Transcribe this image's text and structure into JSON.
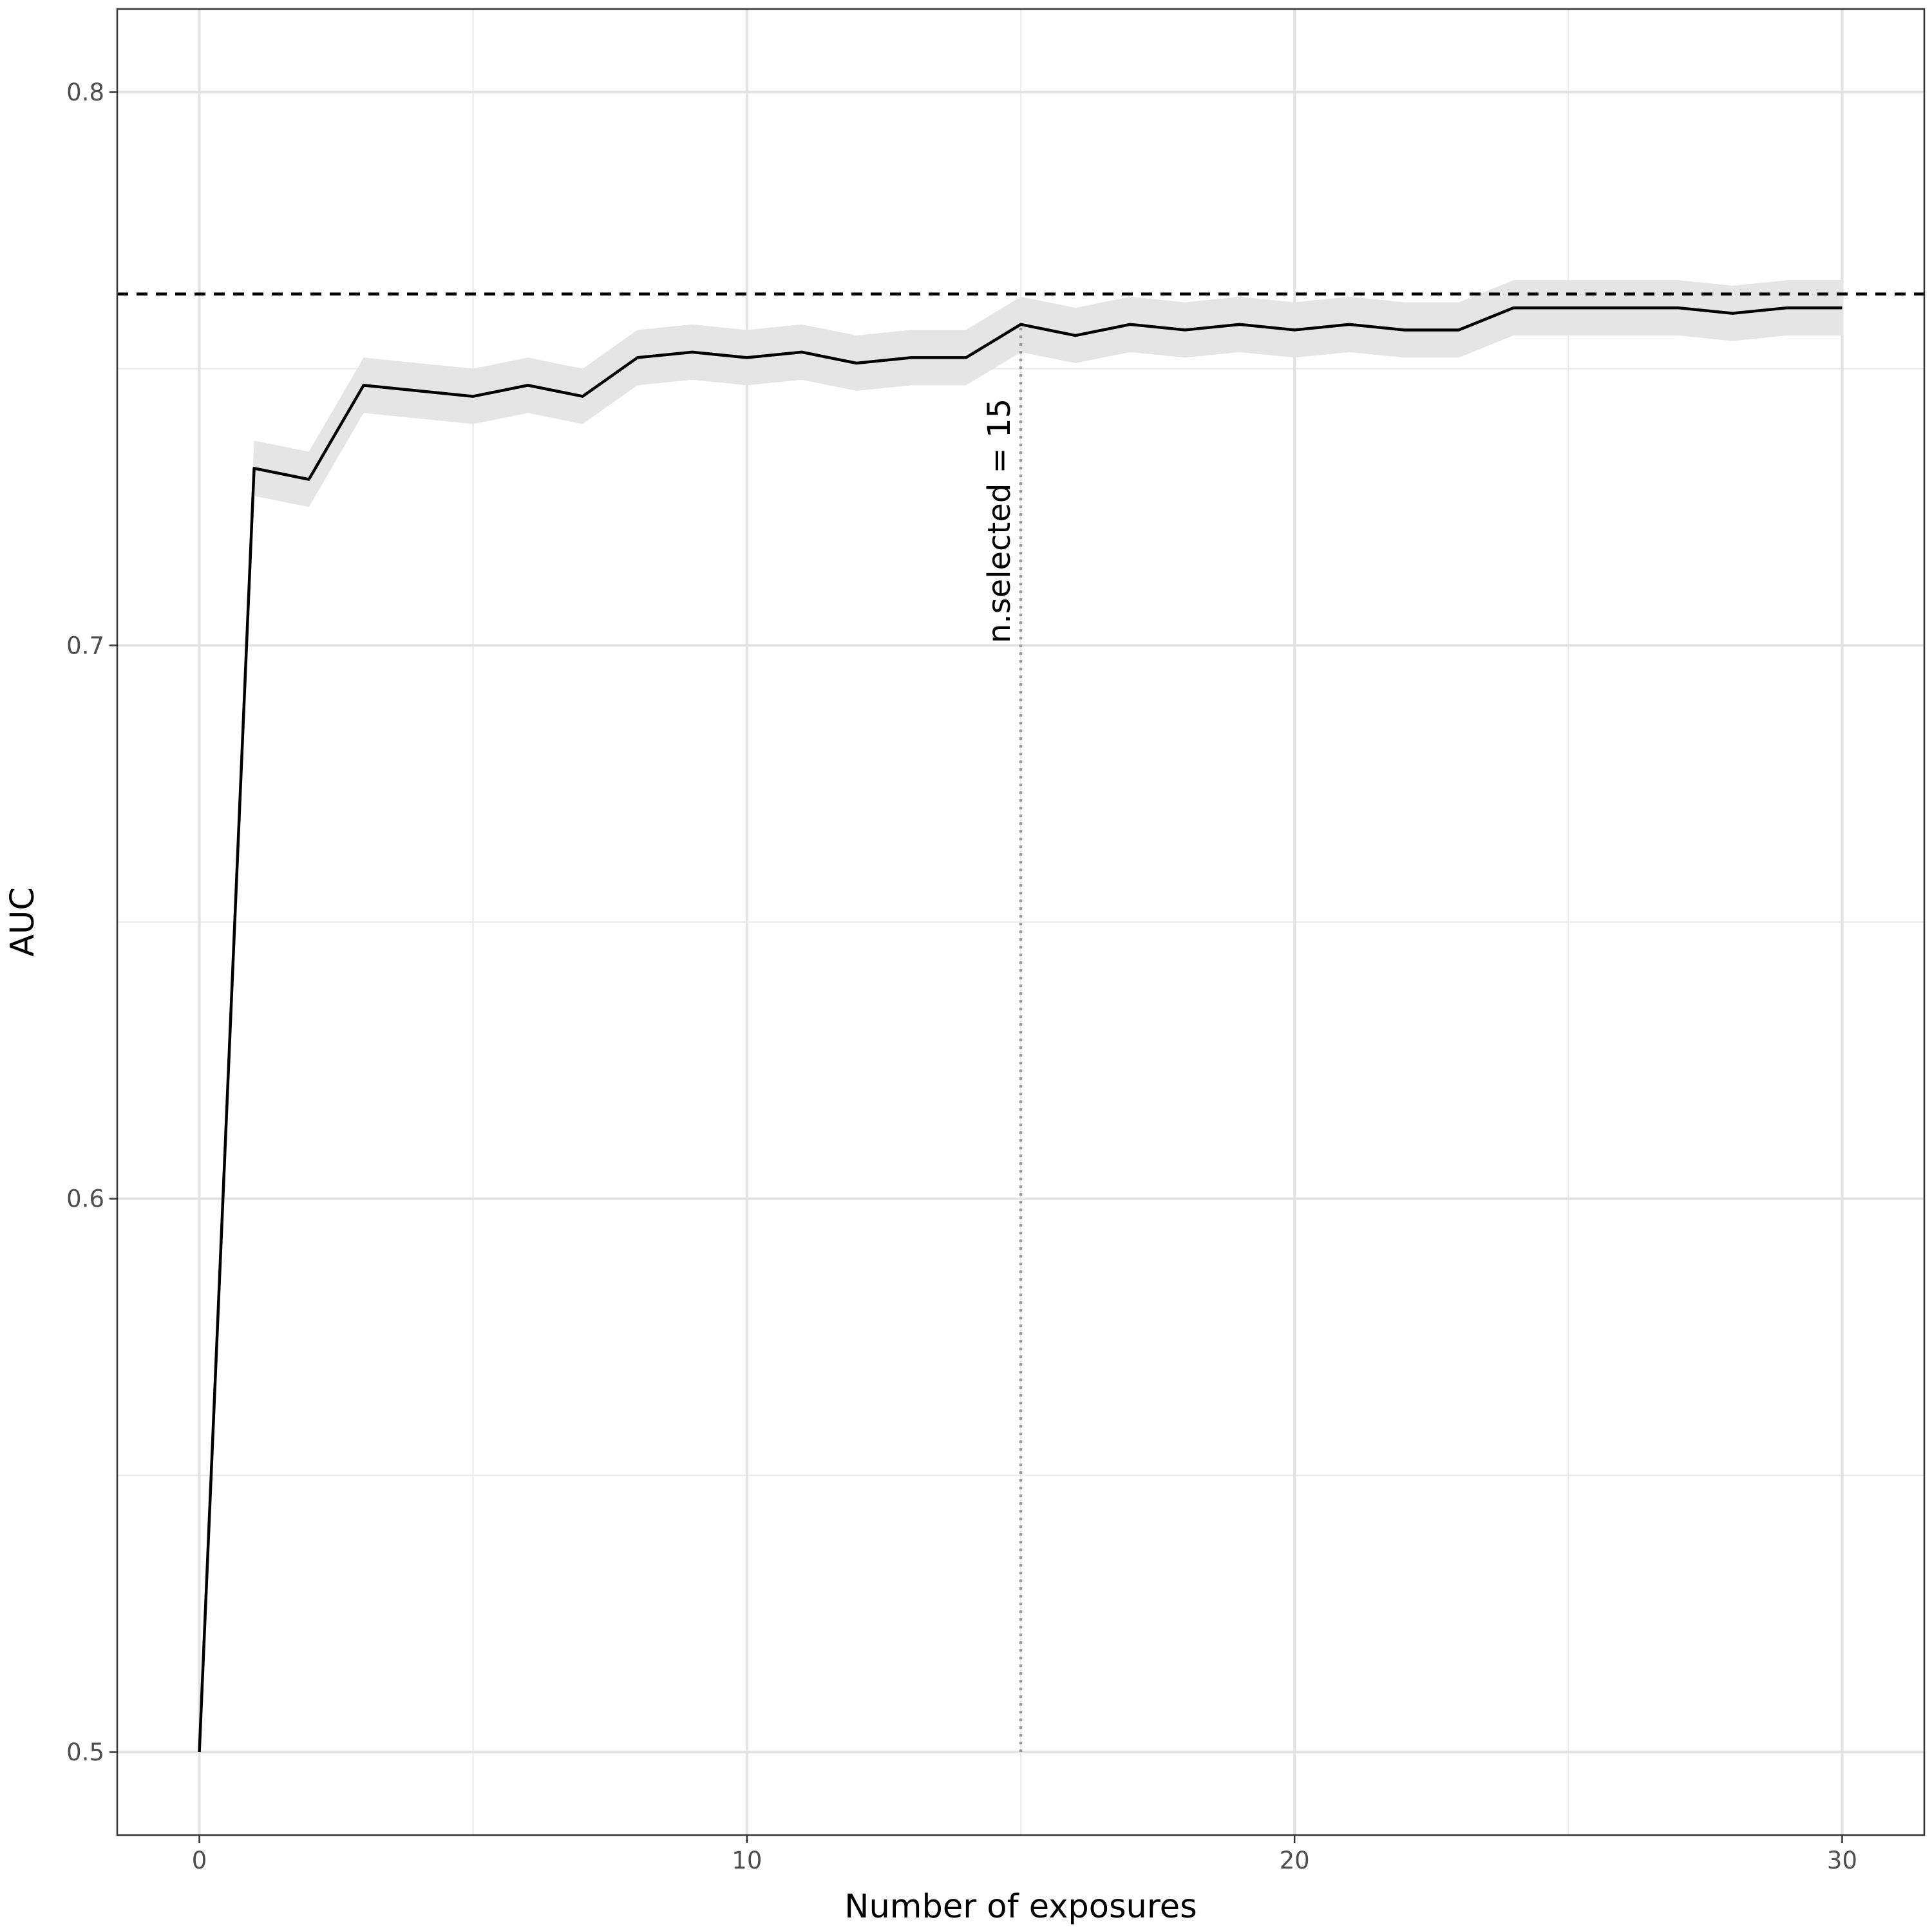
{
  "chart_data": {
    "type": "line",
    "xlabel": "Number of exposures",
    "ylabel": "AUC",
    "xlim": [
      -1.5,
      31.5
    ],
    "ylim": [
      0.485,
      0.815
    ],
    "x_ticks": [
      0,
      10,
      20,
      30
    ],
    "x_tick_labels": [
      "0",
      "10",
      "20",
      "30"
    ],
    "y_ticks": [
      0.5,
      0.6,
      0.7,
      0.8
    ],
    "y_tick_labels": [
      "0.5",
      "0.6",
      "0.7",
      "0.8"
    ],
    "x_minor_ticks": [
      5,
      15,
      25
    ],
    "y_minor_ticks": [
      0.55,
      0.65,
      0.75
    ],
    "grid": true,
    "legend": "none",
    "series": [
      {
        "x": [
          0,
          1,
          2,
          3,
          4,
          5,
          6,
          7,
          8,
          9,
          10,
          11,
          12,
          13,
          14,
          15,
          16,
          17,
          18,
          19,
          20,
          21,
          22,
          23,
          24,
          25,
          26,
          27,
          28,
          29,
          30
        ],
        "values": [
          0.5,
          0.732,
          0.73,
          0.747,
          0.746,
          0.745,
          0.747,
          0.745,
          0.752,
          0.753,
          0.752,
          0.753,
          0.751,
          0.752,
          0.752,
          0.758,
          0.756,
          0.758,
          0.757,
          0.758,
          0.757,
          0.758,
          0.757,
          0.757,
          0.761,
          0.761,
          0.761,
          0.761,
          0.76,
          0.761,
          0.761
        ],
        "ci_lower": [
          0.5,
          0.727,
          0.725,
          0.742,
          0.741,
          0.74,
          0.742,
          0.74,
          0.747,
          0.748,
          0.747,
          0.748,
          0.746,
          0.747,
          0.747,
          0.753,
          0.751,
          0.753,
          0.752,
          0.753,
          0.752,
          0.753,
          0.752,
          0.752,
          0.756,
          0.756,
          0.756,
          0.756,
          0.755,
          0.756,
          0.756
        ],
        "ci_upper": [
          0.5,
          0.737,
          0.735,
          0.752,
          0.751,
          0.75,
          0.752,
          0.75,
          0.757,
          0.758,
          0.757,
          0.758,
          0.756,
          0.757,
          0.757,
          0.763,
          0.761,
          0.763,
          0.762,
          0.763,
          0.762,
          0.763,
          0.762,
          0.762,
          0.766,
          0.766,
          0.766,
          0.766,
          0.765,
          0.766,
          0.766
        ],
        "line_color": "#000000",
        "band_color": "#e5e5e5"
      }
    ],
    "reference_lines": [
      {
        "orientation": "horizontal",
        "value": 0.7635,
        "style": "dashed",
        "color": "#000000"
      },
      {
        "orientation": "vertical",
        "value": 15,
        "ymax": 0.758,
        "style": "dotted",
        "color": "#999999"
      }
    ],
    "annotations": [
      {
        "text": "n.selected = 15",
        "x": 15,
        "y": 0.7225,
        "rotation": -90
      }
    ]
  }
}
